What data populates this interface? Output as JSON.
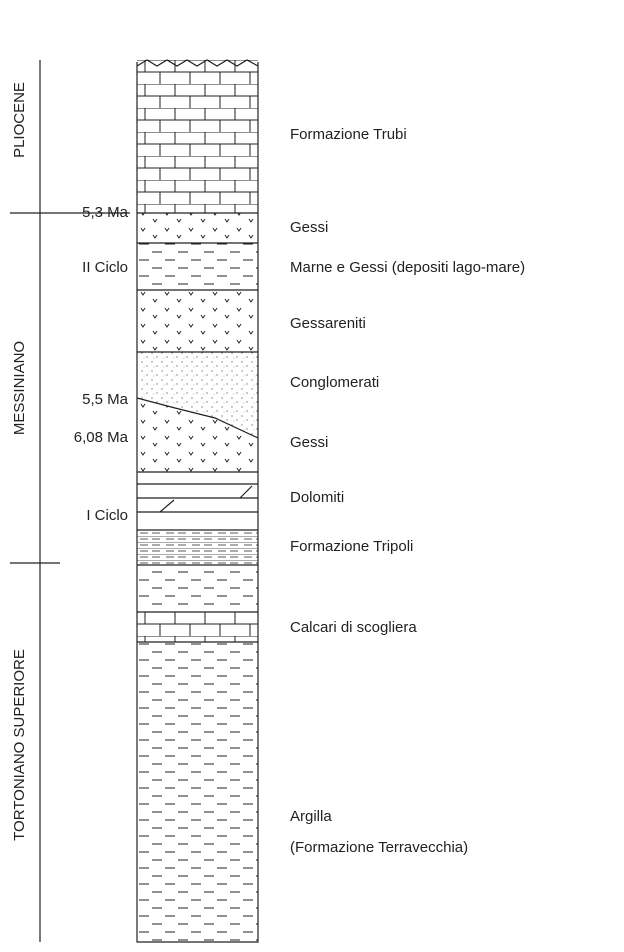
{
  "stages": [
    "PLIOCENE",
    "MESSINIANO",
    "TORTONIANO SUPERIORE"
  ],
  "markers": [
    "5,3 Ma",
    "II Ciclo",
    "5,5 Ma",
    "6,08 Ma",
    "I Ciclo"
  ],
  "layers": [
    "Formazione Trubi",
    "Gessi",
    "Marne e Gessi (depositi lago-mare)",
    "Gessareniti",
    "Conglomerati",
    "Gessi",
    "Dolomiti",
    "Formazione Tripoli",
    "Calcari di scogliera"
  ],
  "argilla": [
    "Argilla",
    "(Formazione Terravecchia)"
  ]
}
